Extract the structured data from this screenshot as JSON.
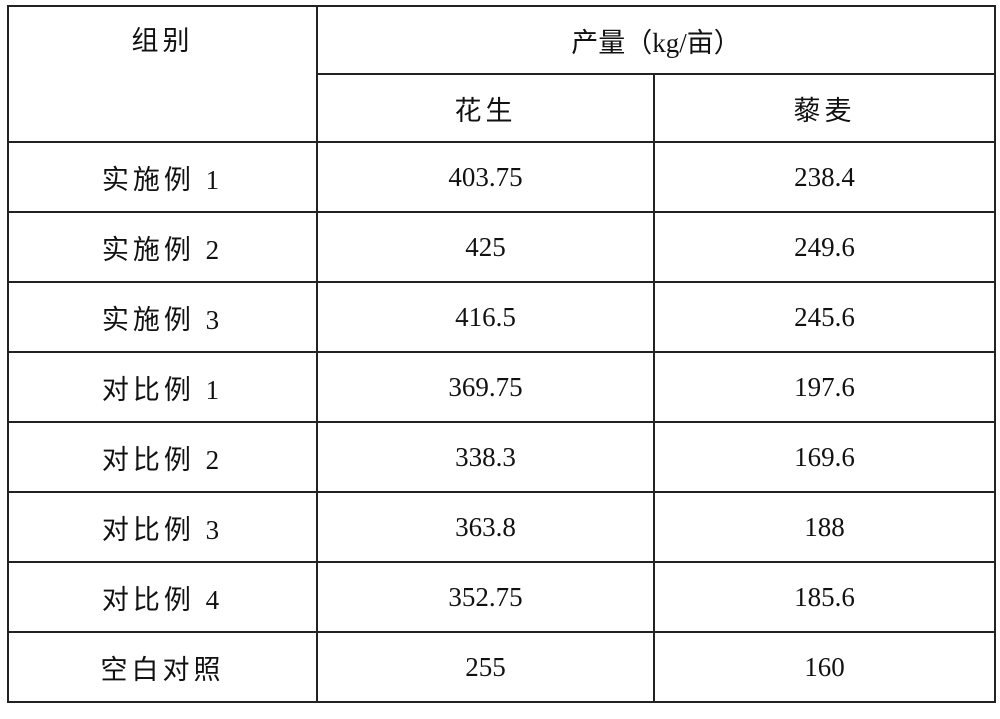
{
  "table": {
    "header": {
      "group_label": "组别",
      "yield_label": "产量（kg/亩）",
      "sub_columns": [
        "花生",
        "藜麦"
      ]
    },
    "rows": [
      {
        "group": "实施例 1",
        "peanut": "403.75",
        "quinoa": "238.4"
      },
      {
        "group": "实施例 2",
        "peanut": "425",
        "quinoa": "249.6"
      },
      {
        "group": "实施例 3",
        "peanut": "416.5",
        "quinoa": "245.6"
      },
      {
        "group": "对比例 1",
        "peanut": "369.75",
        "quinoa": "197.6"
      },
      {
        "group": "对比例 2",
        "peanut": "338.3",
        "quinoa": "169.6"
      },
      {
        "group": "对比例 3",
        "peanut": "363.8",
        "quinoa": "188"
      },
      {
        "group": "对比例 4",
        "peanut": "352.75",
        "quinoa": "185.6"
      },
      {
        "group": "空白对照",
        "peanut": "255",
        "quinoa": "160"
      }
    ]
  }
}
